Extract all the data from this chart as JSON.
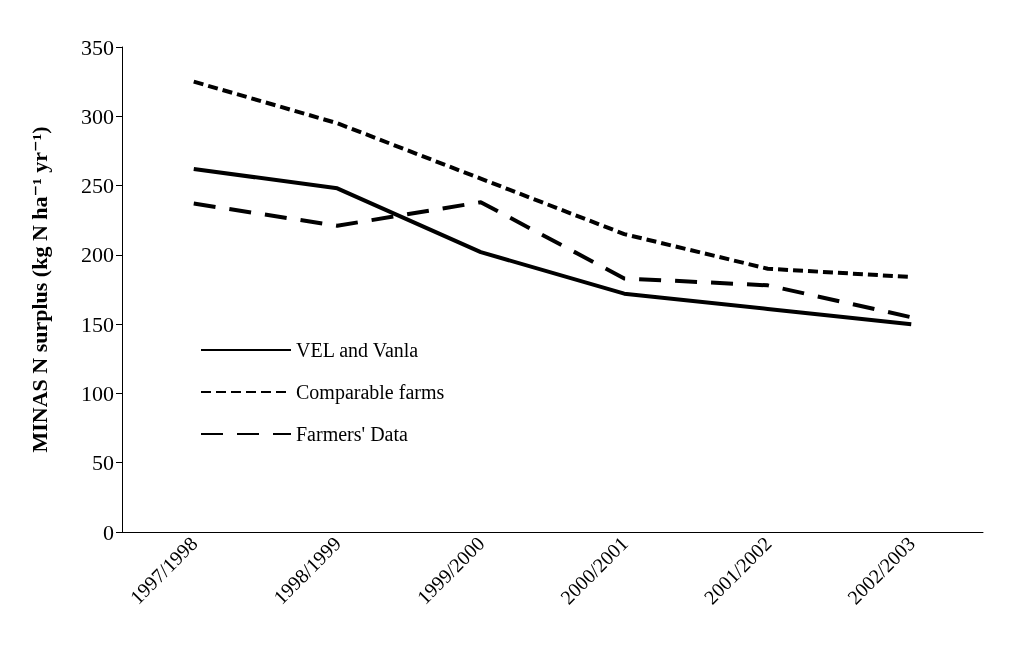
{
  "chart_data": {
    "type": "line",
    "ylabel": "MINAS N surplus (kg N ha⁻¹ yr⁻¹)",
    "categories": [
      "1997/1998",
      "1998/1999",
      "1999/2000",
      "2000/2001",
      "2001/2002",
      "2002/2003"
    ],
    "series": [
      {
        "name": "VEL and Vanla",
        "color": "#000000",
        "line_style": "solid",
        "values": [
          262,
          248,
          202,
          172,
          161,
          150
        ]
      },
      {
        "name": "Comparable farms",
        "color": "#000000",
        "line_style": "dotted",
        "values": [
          325,
          295,
          255,
          215,
          190,
          184
        ]
      },
      {
        "name": "Farmers' Data",
        "color": "#000000",
        "line_style": "dashed",
        "values": [
          237,
          221,
          238,
          183,
          178,
          155
        ]
      }
    ],
    "ylim": [
      0,
      350
    ],
    "yticks": [
      0,
      50,
      100,
      150,
      200,
      250,
      300,
      350
    ],
    "grid": false,
    "legend": "left",
    "marker": "none"
  }
}
